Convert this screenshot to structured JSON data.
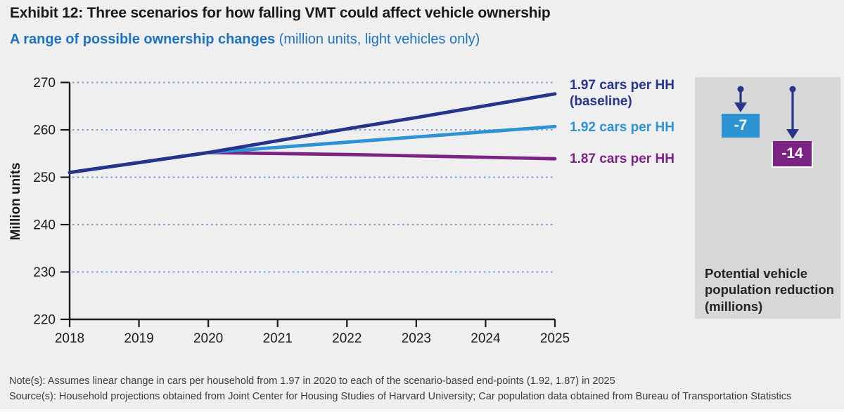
{
  "header": {
    "title": "Exhibit 12: Three scenarios for how falling VMT could affect vehicle ownership",
    "subtitle_bold": "A range of possible ownership changes",
    "subtitle_note": " (million units, light vehicles only)"
  },
  "colors": {
    "page_bg": "#efefef",
    "panel_bg": "#d7d7d7",
    "navy": "#27348b",
    "light_blue": "#2e93d2",
    "purple": "#7c2483",
    "subtitle_blue": "#1e73c0",
    "gridline": "#6f9ad2",
    "axis": "#1a1a1a"
  },
  "chart_data": {
    "type": "line",
    "title": "A range of possible ownership changes",
    "subtitle": "(million units, light vehicles only)",
    "xlabel": "",
    "ylabel": "Million units",
    "x": [
      2018,
      2019,
      2020,
      2021,
      2022,
      2023,
      2024,
      2025
    ],
    "series": [
      {
        "name": "1.97 cars per HH (baseline)",
        "color_key": "navy",
        "values": [
          251.0,
          253.1,
          255.2,
          257.7,
          260.2,
          262.6,
          265.1,
          267.6
        ]
      },
      {
        "name": "1.92 cars per HH",
        "color_key": "light_blue",
        "values": [
          251.0,
          253.1,
          255.2,
          256.3,
          257.4,
          258.5,
          259.6,
          260.7
        ]
      },
      {
        "name": "1.87 cars per HH",
        "color_key": "purple",
        "values": [
          251.0,
          253.1,
          255.2,
          255.0,
          254.8,
          254.5,
          254.2,
          253.9
        ]
      }
    ],
    "yticks": [
      220,
      230,
      240,
      250,
      260,
      270
    ],
    "ylim": [
      220,
      270
    ],
    "grid": "dotted horizontal gridlines at 230-270",
    "legend_position": "right of line ends"
  },
  "legend": [
    {
      "line1": "1.97 cars per HH",
      "line2": "(baseline)"
    },
    {
      "line1": "1.92 cars per HH",
      "line2": ""
    },
    {
      "line1": "1.87 cars per HH",
      "line2": ""
    }
  ],
  "panel": {
    "badge_blue": "-7",
    "badge_purple": "-14",
    "caption": "Potential vehicle population reduction (millions)"
  },
  "footer": {
    "note": "Note(s): Assumes linear change in cars per household from 1.97 in 2020 to each of the scenario-based end-points (1.92, 1.87) in 2025",
    "source": "Source(s): Household projections obtained from Joint Center for Housing Studies of Harvard University; Car population data obtained from Bureau of Transportation Statistics"
  }
}
